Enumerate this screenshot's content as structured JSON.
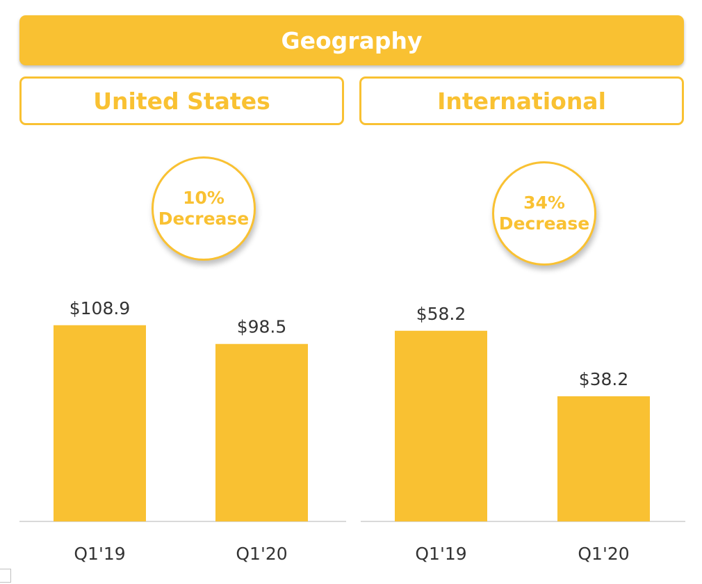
{
  "title": "Geography",
  "colors": {
    "accent": "#f9c132",
    "text": "#333333",
    "axis": "#d9d9d9"
  },
  "regions": [
    {
      "name": "United States",
      "badge_value": "10%",
      "badge_text": "Decrease"
    },
    {
      "name": "International",
      "badge_value": "34%",
      "badge_text": "Decrease"
    }
  ],
  "chart_data": [
    {
      "type": "bar",
      "title": "United States",
      "categories": [
        "Q1'19",
        "Q1'20"
      ],
      "values": [
        108.9,
        98.5
      ],
      "value_labels": [
        "$108.9",
        "$98.5"
      ],
      "ylim": [
        0,
        120
      ],
      "grid": false
    },
    {
      "type": "bar",
      "title": "International",
      "categories": [
        "Q1'19",
        "Q1'20"
      ],
      "values": [
        58.2,
        38.2
      ],
      "value_labels": [
        "$58.2",
        "$38.2"
      ],
      "ylim": [
        0,
        66
      ],
      "grid": false
    }
  ]
}
